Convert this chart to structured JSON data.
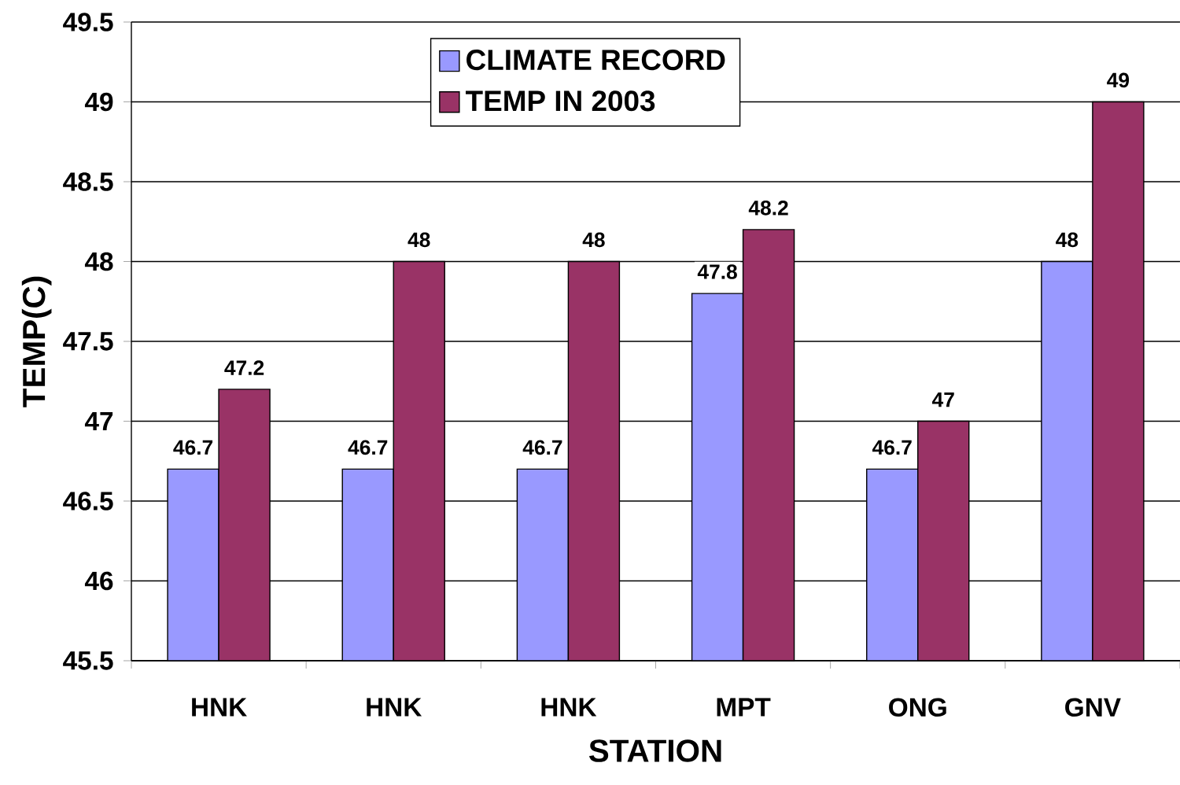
{
  "chart_data": {
    "type": "bar",
    "xlabel": "STATION",
    "ylabel": "TEMP(C)",
    "categories": [
      "HNK",
      "HNK",
      "HNK",
      "MPT",
      "ONG",
      "GNV"
    ],
    "series": [
      {
        "name": "CLIMATE RECORD",
        "color": "#9999ff",
        "values": [
          46.7,
          46.7,
          46.7,
          47.8,
          46.7,
          48
        ]
      },
      {
        "name": "TEMP IN 2003",
        "color": "#993366",
        "values": [
          47.2,
          48,
          48,
          48.2,
          47,
          49
        ]
      }
    ],
    "ylim": [
      45.5,
      49.5
    ],
    "yticks": [
      45.5,
      46,
      46.5,
      47,
      47.5,
      48,
      48.5,
      49,
      49.5
    ],
    "grid": "y",
    "legend": "top",
    "data_labels": true
  }
}
